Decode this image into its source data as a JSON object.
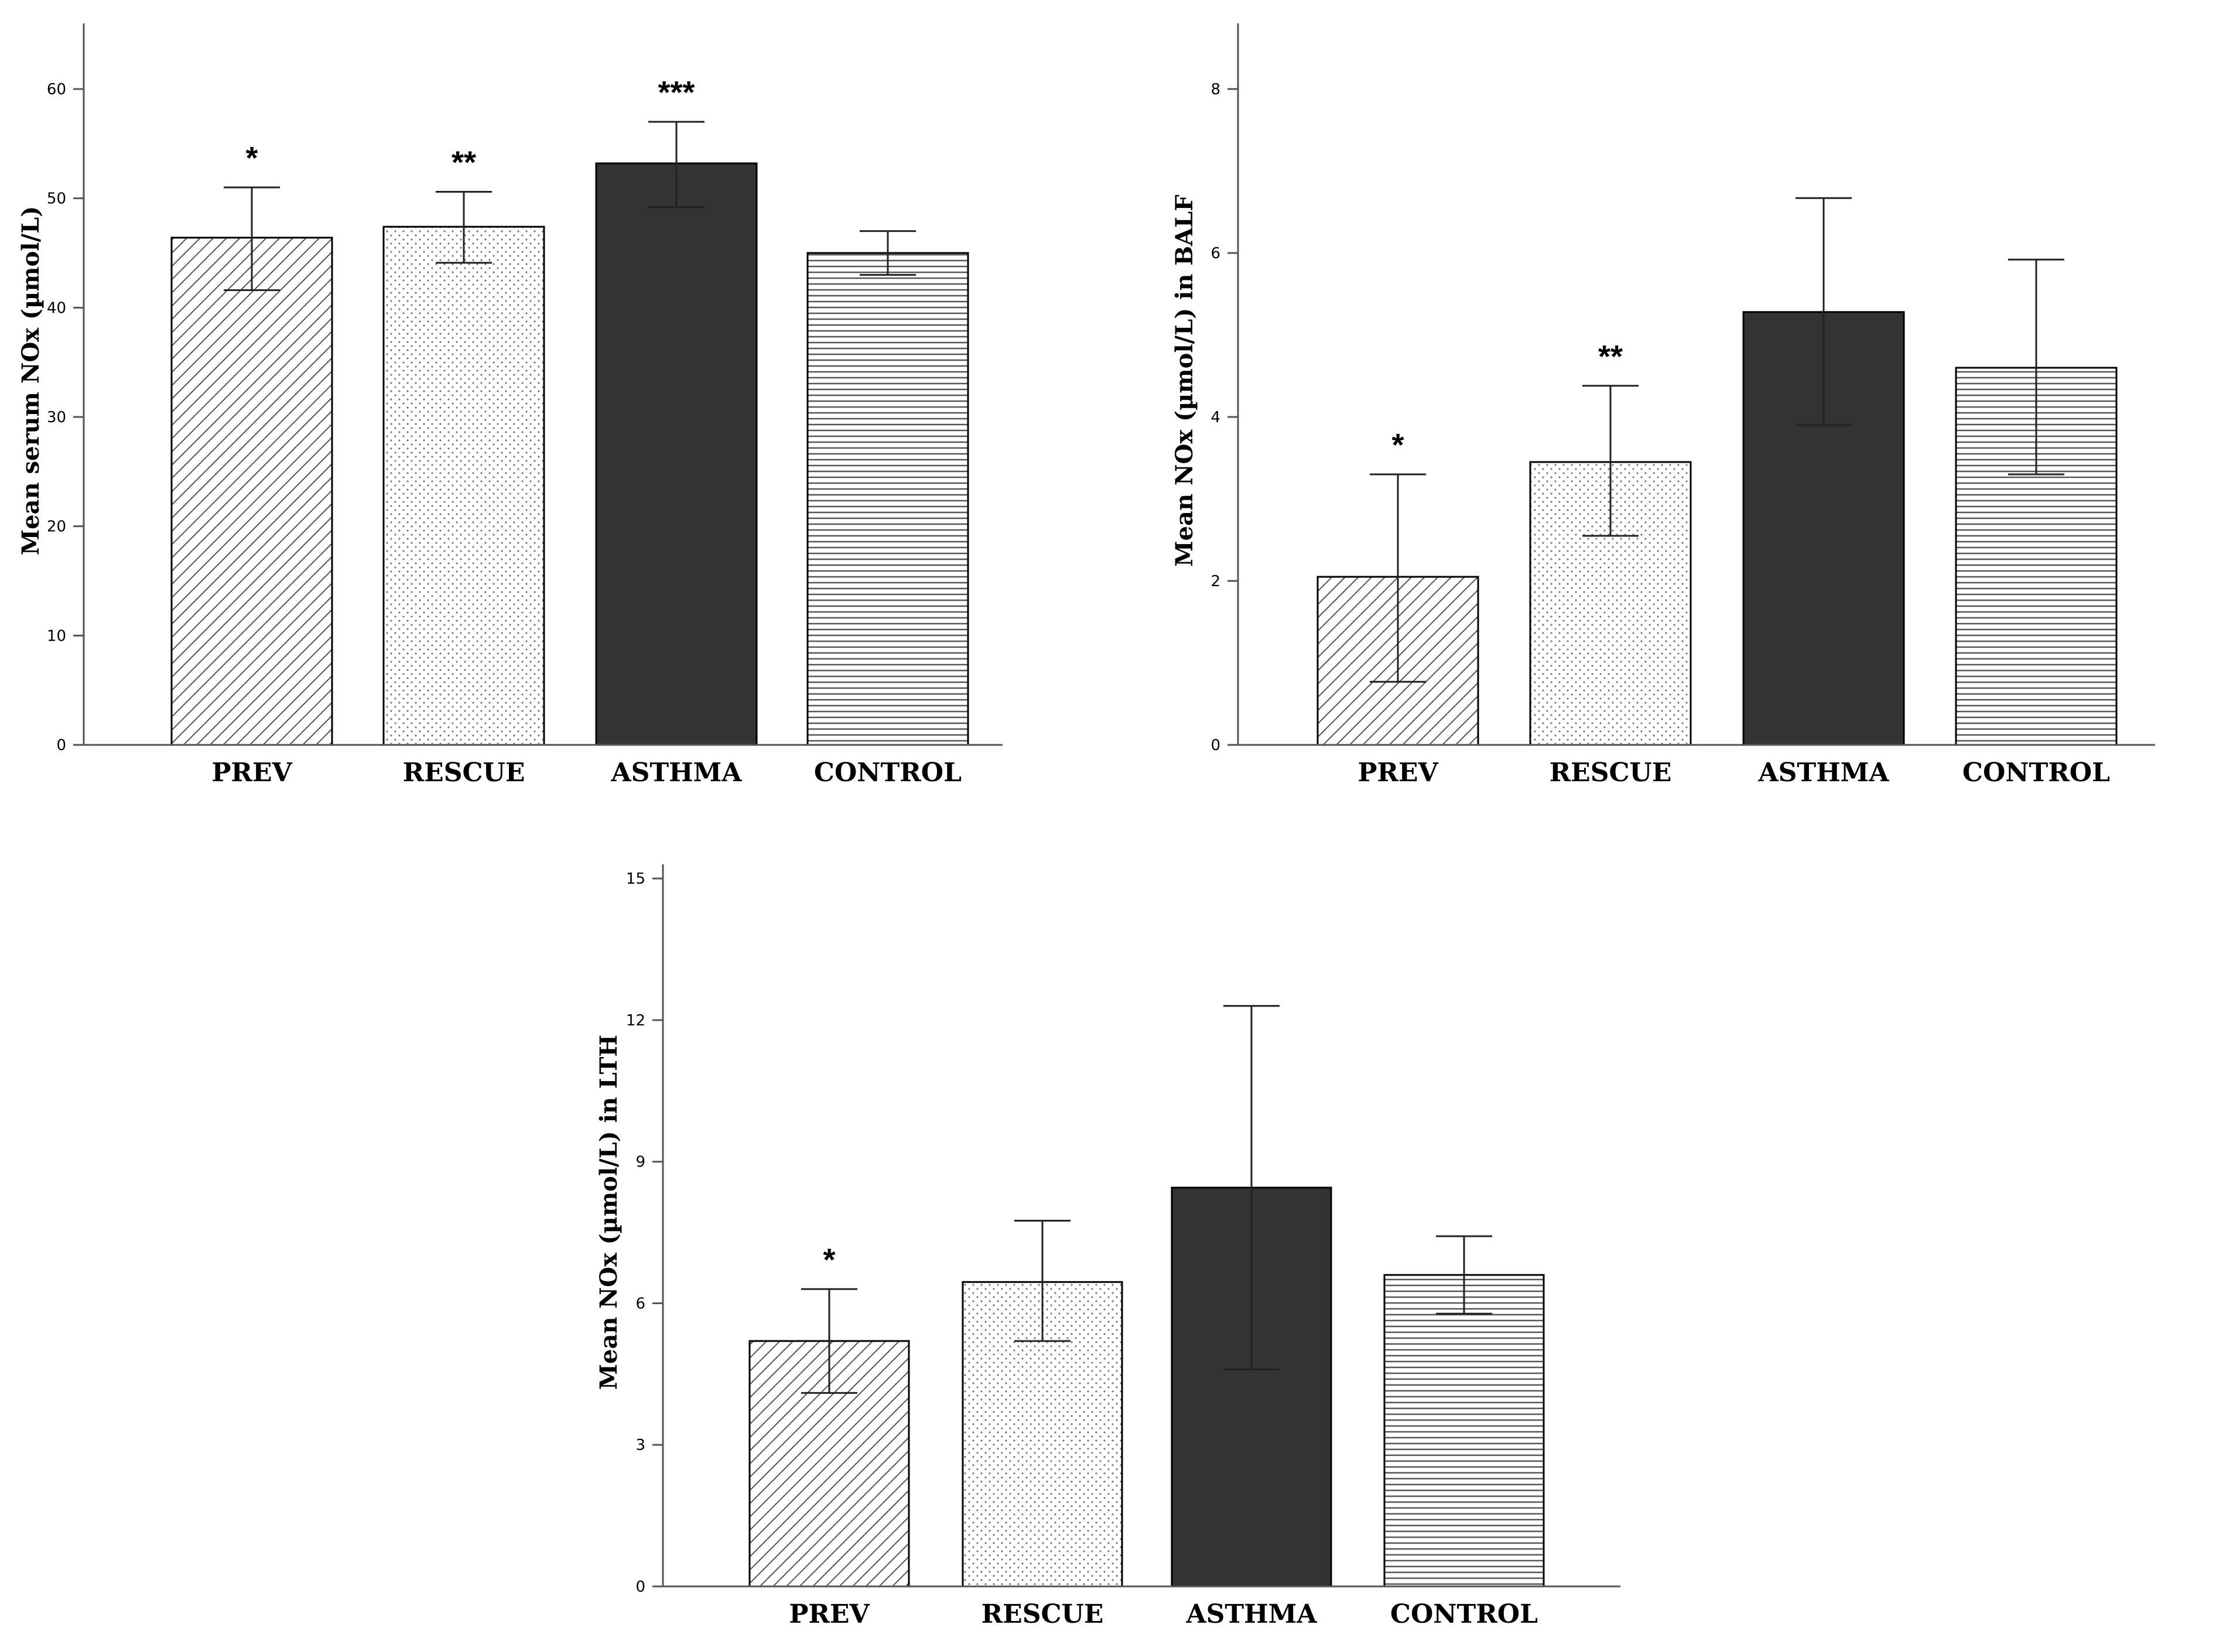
{
  "chart_data": [
    {
      "id": "serum",
      "type": "bar",
      "title": "",
      "xlabel": "",
      "ylabel": "Mean serum NOx (µmol/L)",
      "categories": [
        "PREV",
        "RESCUE",
        "ASTHMA",
        "CONTROL"
      ],
      "values": [
        46.4,
        47.4,
        53.2,
        45.0
      ],
      "error_low": [
        41.6,
        44.1,
        49.2,
        43.0
      ],
      "error_high": [
        51.0,
        50.6,
        57.0,
        47.0
      ],
      "significance": [
        "*",
        "**",
        "***",
        ""
      ],
      "ylim": [
        0,
        66
      ],
      "yticks": [
        0,
        10,
        20,
        30,
        40,
        50,
        60
      ],
      "patterns": [
        "diagonal",
        "dotted",
        "solid",
        "horizontal"
      ]
    },
    {
      "id": "balf",
      "type": "bar",
      "title": "",
      "xlabel": "",
      "ylabel": "Mean NOx (µmol/L) in BALF",
      "categories": [
        "PREV",
        "RESCUE",
        "ASTHMA",
        "CONTROL"
      ],
      "values": [
        2.05,
        3.45,
        5.28,
        4.6
      ],
      "error_low": [
        0.77,
        2.55,
        3.9,
        3.3
      ],
      "error_high": [
        3.3,
        4.38,
        6.67,
        5.92
      ],
      "significance": [
        "*",
        "**",
        "",
        ""
      ],
      "ylim": [
        0,
        8.8
      ],
      "yticks": [
        0,
        2,
        4,
        6,
        8
      ],
      "patterns": [
        "diagonal",
        "dotted",
        "solid",
        "horizontal"
      ]
    },
    {
      "id": "lth",
      "type": "bar",
      "title": "",
      "xlabel": "",
      "ylabel": "Mean NOx (µmol/L) in LTH",
      "categories": [
        "PREV",
        "RESCUE",
        "ASTHMA",
        "CONTROL"
      ],
      "values": [
        5.2,
        6.45,
        8.45,
        6.6
      ],
      "error_low": [
        4.1,
        5.2,
        4.6,
        5.78
      ],
      "error_high": [
        6.3,
        7.75,
        12.3,
        7.42
      ],
      "significance": [
        "*",
        "",
        "",
        ""
      ],
      "ylim": [
        0,
        15.3
      ],
      "yticks": [
        0,
        3,
        6,
        9,
        12,
        15
      ],
      "patterns": [
        "diagonal",
        "dotted",
        "solid",
        "horizontal"
      ]
    }
  ],
  "colors": {
    "solid_bar": "#333333",
    "pattern_line": "#555555",
    "axis": "#555555",
    "bar_outline": "#000000"
  }
}
